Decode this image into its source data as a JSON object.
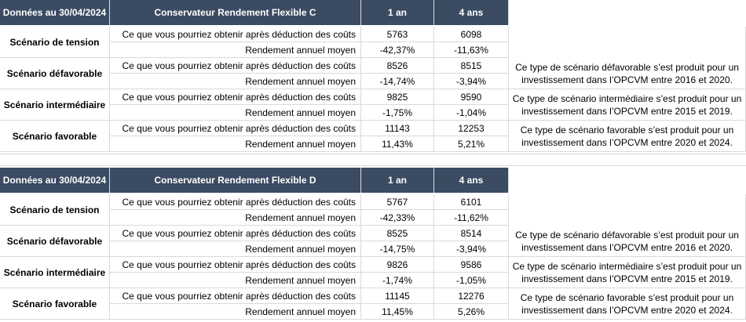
{
  "tables": [
    {
      "header": [
        "Données au 30/04/2024",
        "Conservateur Rendement Flexible C",
        "1 an",
        "4 ans"
      ],
      "scenarios": [
        {
          "name": "Scénario de tension",
          "cost_label": "Ce que vous pourriez obtenir après déduction des coûts",
          "cost_1y": "5763",
          "cost_4y": "6098",
          "yield_label": "Rendement annuel moyen",
          "yield_1y": "-42,37%",
          "yield_4y": "-11,63%",
          "comment": ""
        },
        {
          "name": "Scénario défavorable",
          "cost_label": "Ce que vous pourriez obtenir après déduction des coûts",
          "cost_1y": "8526",
          "cost_4y": "8515",
          "yield_label": "Rendement annuel moyen",
          "yield_1y": "-14,74%",
          "yield_4y": "-3,94%",
          "comment": "Ce type de scénario défavorable s’est produit pour un investissement dans l’OPCVM entre 2016 et 2020."
        },
        {
          "name": "Scénario intermédiaire",
          "cost_label": "Ce que vous pourriez obtenir après déduction des coûts",
          "cost_1y": "9825",
          "cost_4y": "9590",
          "yield_label": "Rendement annuel moyen",
          "yield_1y": "-1,75%",
          "yield_4y": "-1,04%",
          "comment": "Ce type de scénario intermédiaire s’est produit pour un investissement dans l’OPCVM entre 2015 et 2019."
        },
        {
          "name": "Scénario favorable",
          "cost_label": "Ce que vous pourriez obtenir après déduction des coûts",
          "cost_1y": "11143",
          "cost_4y": "12253",
          "yield_label": "Rendement annuel moyen",
          "yield_1y": "11,43%",
          "yield_4y": "5,21%",
          "comment": "Ce type de scénario favorable s’est produit pour un investissement dans l’OPCVM entre 2020 et 2024."
        }
      ]
    },
    {
      "header": [
        "Données au 30/04/2024",
        "Conservateur Rendement Flexible D",
        "1 an",
        "4 ans"
      ],
      "scenarios": [
        {
          "name": "Scénario de tension",
          "cost_label": "Ce que vous pourriez obtenir après déduction des coûts",
          "cost_1y": "5767",
          "cost_4y": "6101",
          "yield_label": "Rendement annuel moyen",
          "yield_1y": "-42,33%",
          "yield_4y": "-11,62%",
          "comment": ""
        },
        {
          "name": "Scénario défavorable",
          "cost_label": "Ce que vous pourriez obtenir après déduction des coûts",
          "cost_1y": "8525",
          "cost_4y": "8514",
          "yield_label": "Rendement annuel moyen",
          "yield_1y": "-14,75%",
          "yield_4y": "-3,94%",
          "comment": "Ce type de scénario défavorable s’est produit pour un investissement dans l’OPCVM entre 2016 et 2020."
        },
        {
          "name": "Scénario intermédiaire",
          "cost_label": "Ce que vous pourriez obtenir après déduction des coûts",
          "cost_1y": "9826",
          "cost_4y": "9586",
          "yield_label": "Rendement annuel moyen",
          "yield_1y": "-1,74%",
          "yield_4y": "-1,05%",
          "comment": "Ce type de scénario intermédiaire s’est produit pour un investissement dans l’OPCVM entre 2015 et 2019."
        },
        {
          "name": "Scénario favorable",
          "cost_label": "Ce que vous pourriez obtenir après déduction des coûts",
          "cost_1y": "11145",
          "cost_4y": "12276",
          "yield_label": "Rendement annuel moyen",
          "yield_1y": "11,45%",
          "yield_4y": "5,26%",
          "comment": "Ce type de scénario favorable s’est produit pour un investissement dans l’OPCVM entre 2020 et 2024."
        }
      ]
    }
  ]
}
